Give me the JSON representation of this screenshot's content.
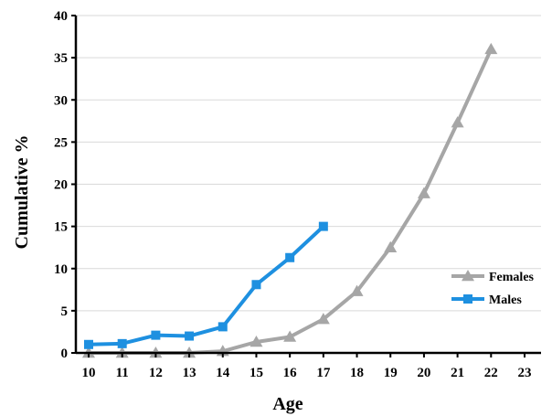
{
  "chart_data": {
    "type": "line",
    "xlabel": "Age",
    "ylabel": "Cumulative %",
    "xlim": [
      10,
      23
    ],
    "ylim": [
      0,
      40
    ],
    "x_ticks": [
      "10",
      "11",
      "12",
      "13",
      "14",
      "15",
      "16",
      "17",
      "18",
      "19",
      "20",
      "21",
      "22",
      "23"
    ],
    "y_ticks": [
      "0",
      "5",
      "10",
      "15",
      "20",
      "25",
      "30",
      "35",
      "40"
    ],
    "grid": "horizontal",
    "legend_position": "right",
    "series": [
      {
        "name": "Females",
        "color": "#a6a6a6",
        "marker": "triangle",
        "x": [
          10,
          11,
          12,
          13,
          14,
          15,
          16,
          17,
          18,
          19,
          20,
          21,
          22
        ],
        "y": [
          0,
          0,
          0,
          0,
          0.2,
          1.3,
          1.9,
          4.0,
          7.3,
          12.5,
          18.9,
          27.3,
          36.0
        ]
      },
      {
        "name": "Males",
        "color": "#1e90e0",
        "marker": "square",
        "x": [
          10,
          11,
          12,
          13,
          14,
          15,
          16,
          17
        ],
        "y": [
          1.0,
          1.1,
          2.1,
          2.0,
          3.1,
          8.1,
          11.3,
          15.0
        ]
      }
    ]
  }
}
